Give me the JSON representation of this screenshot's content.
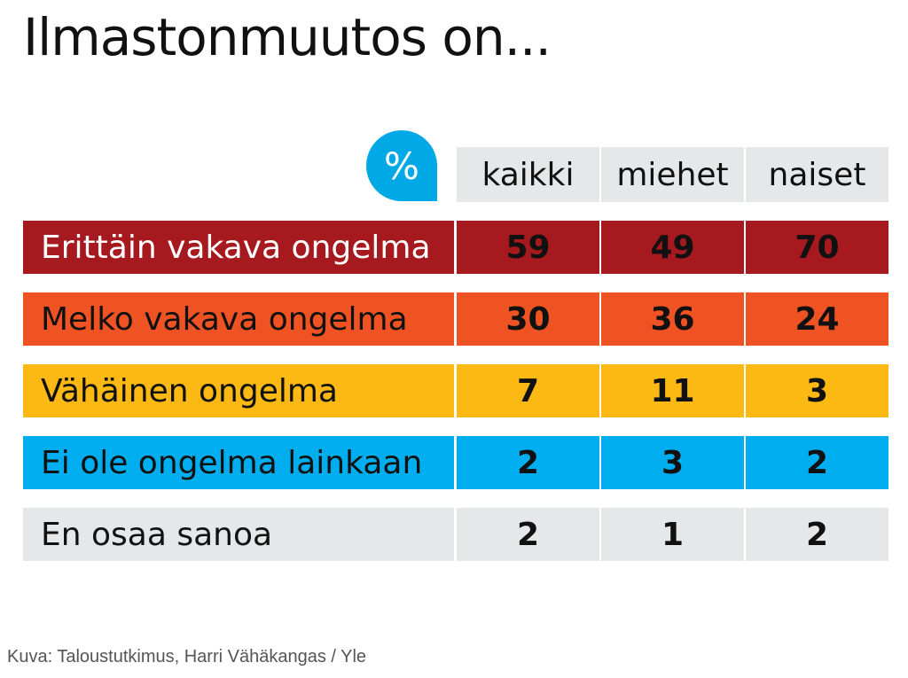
{
  "title": "Ilmastonmuutos on...",
  "percent_symbol": "%",
  "chart_data": {
    "type": "table",
    "title": "Ilmastonmuutos on...",
    "unit": "%",
    "columns": [
      "kaikki",
      "miehet",
      "naiset"
    ],
    "rows": [
      {
        "label": "Erittäin vakava ongelma",
        "values": [
          "59",
          "49",
          "70"
        ],
        "color": "#a6191e",
        "text_color": "#ffffff",
        "value_color": "#111111"
      },
      {
        "label": "Melko vakava ongelma",
        "values": [
          "30",
          "36",
          "24"
        ],
        "color": "#ef5323",
        "text_color": "#111111",
        "value_color": "#111111"
      },
      {
        "label": "Vähäinen ongelma",
        "values": [
          "7",
          "11",
          "3"
        ],
        "color": "#fcb813",
        "text_color": "#111111",
        "value_color": "#111111"
      },
      {
        "label": "Ei ole ongelma lainkaan",
        "values": [
          "2",
          "3",
          "2"
        ],
        "color": "#00adef",
        "text_color": "#111111",
        "value_color": "#111111"
      },
      {
        "label": "En osaa sanoa",
        "values": [
          "2",
          "1",
          "2"
        ],
        "color": "#e6e7e8",
        "text_color": "#111111",
        "value_color": "#111111"
      }
    ]
  },
  "caption": "Kuva: Taloustutkimus, Harri Vähäkangas / Yle"
}
